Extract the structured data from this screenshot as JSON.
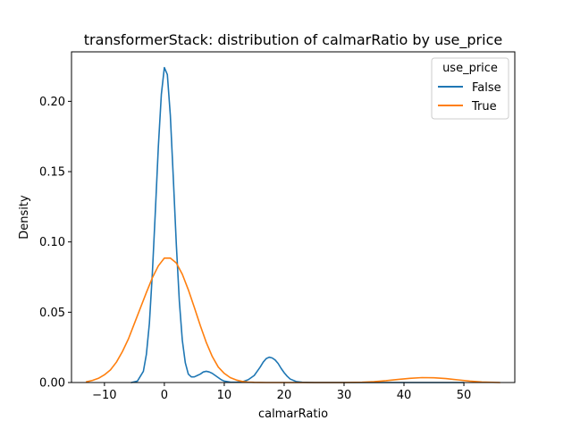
{
  "chart_data": {
    "type": "line",
    "title": "transformerStack: distribution of calmarRatio by use_price",
    "xlabel": "calmarRatio",
    "ylabel": "Density",
    "xlim": [
      -15.5,
      58.5
    ],
    "ylim": [
      0,
      0.2352
    ],
    "xticks": [
      -10,
      0,
      10,
      20,
      30,
      40,
      50
    ],
    "xtick_labels": [
      "−10",
      "0",
      "10",
      "20",
      "30",
      "40",
      "50"
    ],
    "yticks": [
      0,
      0.05,
      0.1,
      0.15,
      0.2
    ],
    "ytick_labels": [
      "0.00",
      "0.05",
      "0.10",
      "0.15",
      "0.20"
    ],
    "grid": false,
    "legend": {
      "title": "use_price",
      "placement": "top-right"
    },
    "series": [
      {
        "name": "False",
        "color": "#1f77b4",
        "x": [
          -5.5,
          -4.5,
          -3.5,
          -3.0,
          -2.5,
          -2.0,
          -1.5,
          -1.0,
          -0.5,
          0.0,
          0.5,
          1.0,
          1.5,
          2.0,
          2.5,
          3.0,
          3.5,
          4.0,
          4.5,
          5.0,
          5.5,
          6.0,
          6.5,
          7.0,
          7.5,
          8.0,
          8.5,
          9.0,
          9.5,
          10.0,
          11.0,
          12.0,
          13.0,
          14.0,
          15.0,
          15.5,
          16.0,
          16.5,
          17.0,
          17.5,
          18.0,
          18.5,
          19.0,
          19.5,
          20.0,
          20.5,
          21.0,
          22.0,
          23.0,
          25.0,
          30.0,
          35.0,
          40.0,
          45.0,
          50.0
        ],
        "y": [
          0.0,
          0.001,
          0.008,
          0.02,
          0.042,
          0.078,
          0.122,
          0.168,
          0.205,
          0.224,
          0.219,
          0.19,
          0.145,
          0.098,
          0.058,
          0.03,
          0.014,
          0.006,
          0.004,
          0.004,
          0.005,
          0.006,
          0.0075,
          0.008,
          0.0075,
          0.0065,
          0.005,
          0.0035,
          0.002,
          0.001,
          0.0003,
          0.0002,
          0.0005,
          0.002,
          0.005,
          0.008,
          0.011,
          0.0145,
          0.017,
          0.018,
          0.0175,
          0.016,
          0.0135,
          0.01,
          0.007,
          0.0045,
          0.0025,
          0.0007,
          0.0002,
          0.0,
          0.0,
          0.0,
          0.0,
          0.0,
          0.0
        ]
      },
      {
        "name": "True",
        "color": "#ff7f0e",
        "x": [
          -13.0,
          -12.0,
          -11.0,
          -10.0,
          -9.0,
          -8.0,
          -7.0,
          -6.0,
          -5.0,
          -4.0,
          -3.0,
          -2.0,
          -1.0,
          0.0,
          1.0,
          2.0,
          3.0,
          4.0,
          5.0,
          6.0,
          7.0,
          8.0,
          9.0,
          10.0,
          11.0,
          12.0,
          13.0,
          14.0,
          15.0,
          17.0,
          20.0,
          25.0,
          30.0,
          33.0,
          35.0,
          37.0,
          39.0,
          41.0,
          43.0,
          45.0,
          47.0,
          49.0,
          51.0,
          53.0,
          56.0
        ],
        "y": [
          0.0005,
          0.0015,
          0.003,
          0.0055,
          0.009,
          0.0145,
          0.022,
          0.031,
          0.042,
          0.053,
          0.064,
          0.0745,
          0.083,
          0.0885,
          0.0885,
          0.085,
          0.077,
          0.066,
          0.0535,
          0.0405,
          0.0285,
          0.0185,
          0.011,
          0.0065,
          0.0035,
          0.0018,
          0.0008,
          0.0003,
          0.0001,
          0.0,
          0.0,
          0.0,
          0.0,
          0.0002,
          0.0006,
          0.0013,
          0.0022,
          0.003,
          0.0035,
          0.0034,
          0.0028,
          0.0019,
          0.001,
          0.0004,
          0.0
        ]
      }
    ]
  }
}
